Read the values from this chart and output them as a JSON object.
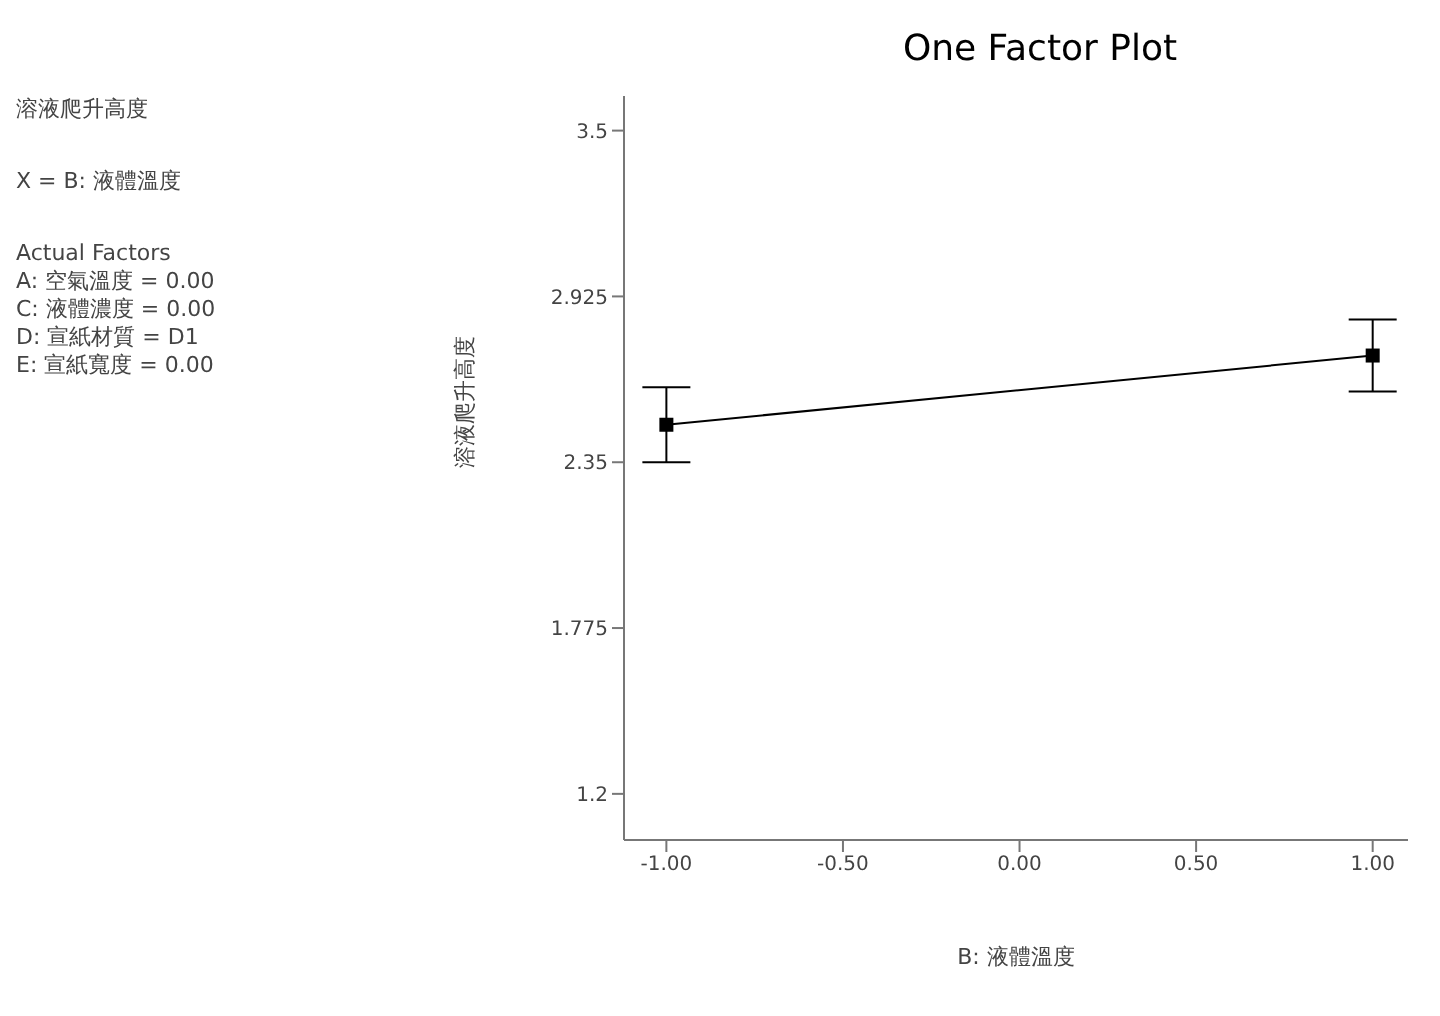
{
  "chart_data": {
    "type": "line",
    "title": "One Factor Plot",
    "xlabel": "B: 液體溫度",
    "ylabel": "溶液爬升高度",
    "annotations": [
      "溶液爬升高度",
      "X = B: 液體溫度",
      "Actual Factors\nA: 空氣溫度 = 0.00\nC: 液體濃度 = 0.00\nD: 宣紙材質 = D1\nE: 宣紙寬度 = 0.00"
    ],
    "x": [
      -1,
      1
    ],
    "series": [
      {
        "color": "#000000",
        "values": [
          2.48,
          2.72
        ],
        "errors": [
          0.13,
          0.125
        ]
      }
    ],
    "xlim": [
      -1.12,
      1.1
    ],
    "xticks": [
      {
        "value": -1,
        "label": "-1.00"
      },
      {
        "value": -0.5,
        "label": "-0.50"
      },
      {
        "value": 0,
        "label": "0.00"
      },
      {
        "value": 0.5,
        "label": "0.50"
      },
      {
        "value": 1,
        "label": "1.00"
      }
    ],
    "ylim": [
      1.04,
      3.62
    ],
    "yticks": [
      1.2,
      1.775,
      2.35,
      2.925,
      3.5
    ],
    "grid": false,
    "legend": false,
    "marker": "square",
    "line_style": "solid"
  }
}
